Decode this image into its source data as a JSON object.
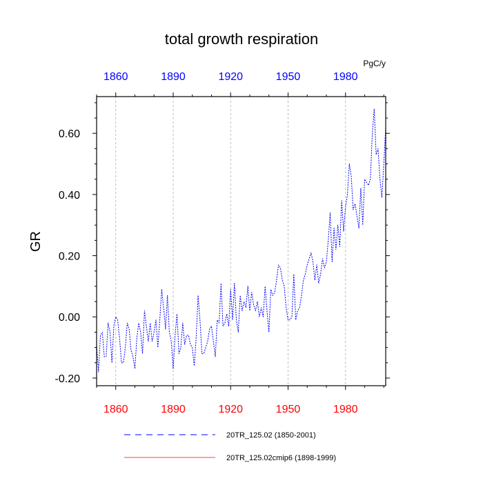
{
  "chart_data": {
    "type": "line",
    "title": "total growth respiration",
    "units": "PgC/y",
    "ylabel": "GR",
    "xlabel": "",
    "xlim": [
      1850,
      2001
    ],
    "ylim": [
      -0.225,
      0.72
    ],
    "xticks": [
      1860,
      1890,
      1920,
      1950,
      1980
    ],
    "xtick_labels": [
      "1860",
      "1890",
      "1920",
      "1950",
      "1980"
    ],
    "yticks": [
      -0.2,
      0.0,
      0.2,
      0.4,
      0.6
    ],
    "ytick_labels": [
      "-0.20",
      "0.00",
      "0.20",
      "0.40",
      "0.60"
    ],
    "yminor": [
      -0.15,
      -0.1,
      -0.05,
      0.05,
      0.1,
      0.15,
      0.25,
      0.3,
      0.35,
      0.45,
      0.5,
      0.55,
      0.65,
      0.7
    ],
    "grid_x": true,
    "colors": {
      "top_ticks": "#0000ff",
      "bottom_ticks": "#ff0000",
      "series1": "#0000ff",
      "series2": "#ff0000",
      "grid": "#aaaaaa"
    },
    "series": [
      {
        "name": "20TR_125.02 (1850-2001)",
        "style": "dashed",
        "color": "#0000ff",
        "x_start": 1850,
        "values": [
          -0.09,
          -0.18,
          -0.06,
          -0.05,
          -0.13,
          -0.13,
          -0.02,
          -0.05,
          -0.15,
          -0.03,
          0.0,
          -0.01,
          -0.07,
          -0.15,
          -0.15,
          -0.1,
          -0.02,
          -0.04,
          -0.11,
          -0.13,
          -0.17,
          -0.07,
          -0.02,
          -0.05,
          -0.12,
          0.02,
          -0.03,
          -0.08,
          -0.02,
          -0.08,
          -0.05,
          -0.01,
          -0.1,
          -0.01,
          0.09,
          0.03,
          -0.04,
          0.07,
          -0.05,
          -0.08,
          -0.17,
          -0.06,
          0.01,
          -0.12,
          -0.1,
          -0.02,
          -0.09,
          -0.06,
          -0.06,
          -0.09,
          -0.1,
          -0.16,
          -0.07,
          0.07,
          -0.01,
          -0.12,
          -0.12,
          -0.1,
          -0.08,
          -0.04,
          -0.03,
          -0.08,
          -0.13,
          -0.01,
          -0.02,
          0.11,
          -0.03,
          -0.02,
          0.01,
          -0.03,
          0.09,
          -0.01,
          0.11,
          -0.01,
          -0.05,
          0.07,
          0.02,
          0.05,
          0.03,
          0.1,
          0.02,
          0.08,
          0.04,
          0.02,
          0.05,
          0.0,
          0.03,
          0.0,
          0.1,
          0.02,
          -0.05,
          0.09,
          0.07,
          0.08,
          0.12,
          0.17,
          0.16,
          0.12,
          0.1,
          0.03,
          -0.01,
          -0.01,
          0.0,
          0.14,
          -0.01,
          0.02,
          0.03,
          0.07,
          0.12,
          0.14,
          0.17,
          0.19,
          0.21,
          0.18,
          0.12,
          0.17,
          0.11,
          0.14,
          0.19,
          0.16,
          0.18,
          0.25,
          0.34,
          0.18,
          0.29,
          0.22,
          0.3,
          0.23,
          0.38,
          0.28,
          0.36,
          0.4,
          0.5,
          0.46,
          0.35,
          0.37,
          0.33,
          0.29,
          0.42,
          0.3,
          0.45,
          0.44,
          0.43,
          0.45,
          0.6,
          0.68,
          0.53,
          0.55,
          0.45,
          0.39,
          0.5,
          0.62
        ]
      },
      {
        "name": "20TR_125.02cmip6 (1898-1999)",
        "style": "solid",
        "color": "#ff0000",
        "values": []
      }
    ]
  }
}
